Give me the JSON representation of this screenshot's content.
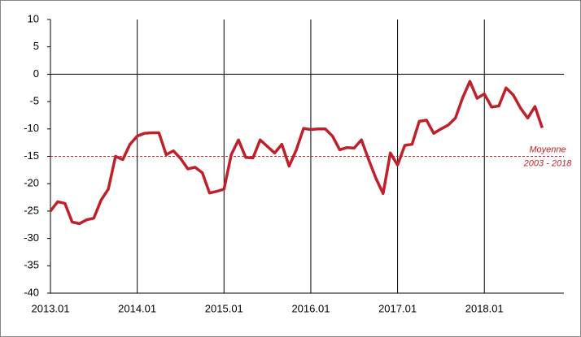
{
  "chart_data": {
    "type": "line",
    "categories": [
      "2013.01",
      null,
      null,
      null,
      null,
      null,
      null,
      null,
      null,
      null,
      null,
      null,
      "2014.01",
      null,
      null,
      null,
      null,
      null,
      null,
      null,
      null,
      null,
      null,
      null,
      "2015.01",
      null,
      null,
      null,
      null,
      null,
      null,
      null,
      null,
      null,
      null,
      null,
      "2016.01",
      null,
      null,
      null,
      null,
      null,
      null,
      null,
      null,
      null,
      null,
      null,
      "2017.01",
      null,
      null,
      null,
      null,
      null,
      null,
      null,
      null,
      null,
      null,
      null,
      "2018.01",
      null,
      null,
      null,
      null,
      null,
      null,
      null,
      null,
      null,
      null,
      null
    ],
    "series": [
      {
        "name": null,
        "color": "#c0202a",
        "values": [
          -25,
          -23.3,
          -23.6,
          -27,
          -27.3,
          -26.6,
          -26.3,
          -23,
          -21,
          -15,
          -15.6,
          -12.8,
          -11.3,
          -10.8,
          -10.7,
          -10.7,
          -14.7,
          -14,
          -15.4,
          -17.3,
          -17,
          -18,
          -21.7,
          -21.4,
          -21,
          -14.7,
          -12,
          -15.2,
          -15.3,
          -12,
          -13.2,
          -14.4,
          -12.8,
          -16.8,
          -13.8,
          -9.9,
          -10.1,
          -10,
          -10,
          -11.3,
          -13.8,
          -13.4,
          -13.5,
          -12,
          -15.6,
          -19,
          -21.8,
          -14.4,
          -16.6,
          -13,
          -12.8,
          -8.6,
          -8.4,
          -10.8,
          -10,
          -9.3,
          -8,
          -4.3,
          -1.3,
          -4.4,
          -3.6,
          -6,
          -5.8,
          -2.5,
          -3.8,
          -6.2,
          -8,
          -5.9,
          -9.8,
          null,
          null,
          null
        ]
      }
    ],
    "ylim": [
      -40,
      10
    ],
    "yticks": [
      10,
      5,
      0,
      -5,
      -10,
      -15,
      -20,
      -25,
      -30,
      -35,
      -40
    ],
    "reference_line": {
      "value": -15,
      "color": "#c0202a",
      "labels": [
        "Moyenne",
        "2003 - 2018"
      ]
    }
  }
}
